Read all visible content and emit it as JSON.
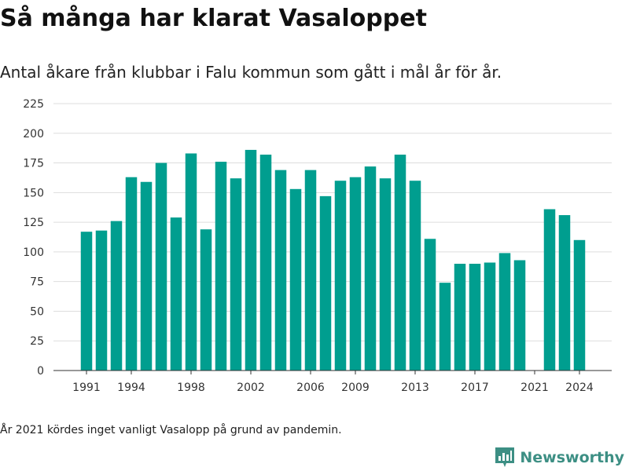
{
  "title": "Så många har klarat Vasaloppet",
  "subtitle": "Antal åkare från klubbar i Falu kommun som gått i mål år för år.",
  "note": "År 2021 kördes inget vanligt Vasalopp på grund av pandemin.",
  "brand": {
    "name": "Newsworthy",
    "icon": "newsworthy-logo-icon",
    "color": "#3d8f84"
  },
  "colors": {
    "bar": "#009e8f",
    "grid": "#dddddd",
    "axis": "#333333"
  },
  "chart_data": {
    "type": "bar",
    "title": "",
    "xlabel": "",
    "ylabel": "",
    "categories": [
      "1991",
      "1992",
      "1993",
      "1994",
      "1995",
      "1996",
      "1997",
      "1998",
      "1999",
      "2000",
      "2001",
      "2002",
      "2003",
      "2004",
      "2005",
      "2006",
      "2007",
      "2008",
      "2009",
      "2010",
      "2011",
      "2012",
      "2013",
      "2014",
      "2015",
      "2016",
      "2017",
      "2018",
      "2019",
      "2020",
      "2021",
      "2022",
      "2023",
      "2024"
    ],
    "values": [
      117,
      118,
      126,
      163,
      159,
      175,
      129,
      183,
      119,
      176,
      162,
      186,
      182,
      169,
      153,
      169,
      147,
      160,
      163,
      172,
      162,
      182,
      160,
      111,
      74,
      90,
      90,
      91,
      99,
      93,
      null,
      136,
      131,
      110
    ],
    "ylim": [
      0,
      225
    ],
    "yticks": [
      0,
      25,
      50,
      75,
      100,
      125,
      150,
      175,
      200,
      225
    ],
    "xticks": [
      "1991",
      "1994",
      "1998",
      "2002",
      "2006",
      "2009",
      "2013",
      "2017",
      "2021",
      "2024"
    ],
    "grid": true,
    "legend": "none"
  }
}
